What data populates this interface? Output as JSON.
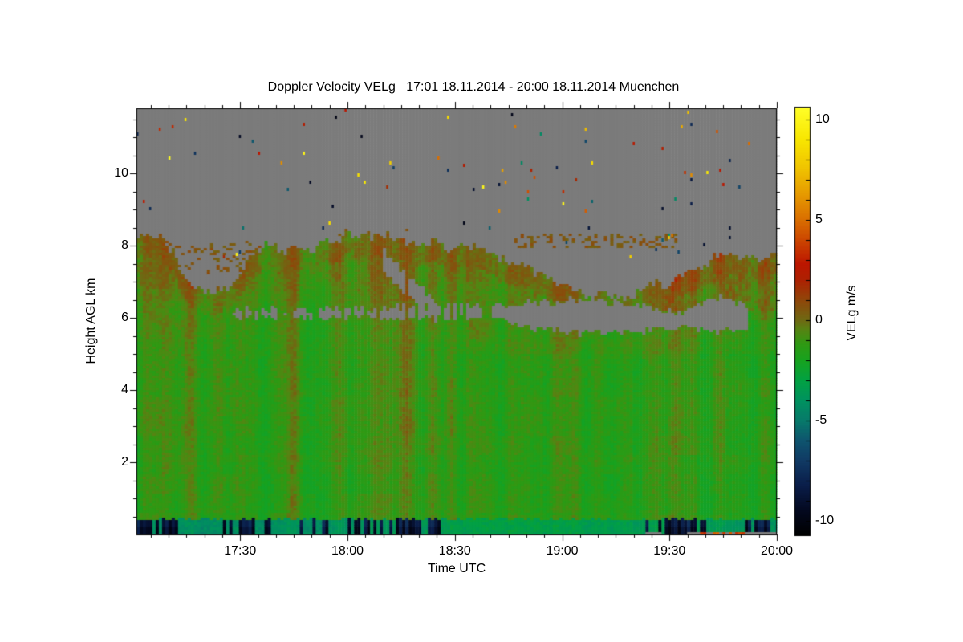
{
  "chart_data": {
    "type": "heatmap",
    "title": "Doppler Velocity VELg   17:01 18.11.2014 - 20:00 18.11.2014 Muenchen",
    "location": "Muenchen",
    "time_span": "17:01 18.11.2014 - 20:00 18.11.2014",
    "x_axis": {
      "label": "Time UTC",
      "start": "17:01",
      "end": "20:00",
      "major_ticks": [
        "17:30",
        "18:00",
        "18:30",
        "19:00",
        "19:30",
        "20:00"
      ],
      "minor_step_minutes": 5
    },
    "y_axis": {
      "label": "Height AGL km",
      "range": [
        0,
        11.8
      ],
      "major_ticks": [
        2,
        4,
        6,
        8,
        10
      ],
      "minor_step": 0.5
    },
    "colorbar": {
      "label": "VELg m/s",
      "tick_values": [
        10,
        5,
        0,
        -5,
        -10
      ],
      "range": [
        -10.75,
        10.65
      ],
      "minor_tick_step": 1
    },
    "colormap": [
      [
        -10.75,
        "#000000"
      ],
      [
        -9.5,
        "#03081f"
      ],
      [
        -8.2,
        "#0a1e4a"
      ],
      [
        -7.0,
        "#103a64"
      ],
      [
        -6.0,
        "#0e546e"
      ],
      [
        -5.0,
        "#077a6a"
      ],
      [
        -4.0,
        "#00925f"
      ],
      [
        -3.0,
        "#02a143"
      ],
      [
        -2.0,
        "#17a21f"
      ],
      [
        -1.2,
        "#2f9913"
      ],
      [
        -0.5,
        "#558513"
      ],
      [
        0.0,
        "#6e6a13"
      ],
      [
        0.6,
        "#82540e"
      ],
      [
        1.2,
        "#964008"
      ],
      [
        2.0,
        "#ad2102"
      ],
      [
        2.8,
        "#bc1600"
      ],
      [
        3.8,
        "#c93e00"
      ],
      [
        5.0,
        "#d96e00"
      ],
      [
        6.3,
        "#e69b00"
      ],
      [
        7.6,
        "#f0c400"
      ],
      [
        9.0,
        "#f8e600"
      ],
      [
        10.65,
        "#ffff2a"
      ]
    ],
    "no_data_color": "#7b7b7b",
    "field": {
      "description": "Cloud radar Doppler velocity: continuous layer from ground to ~8 km, cloud top varying 6.5-8.4 km, gray = no signal, boundary-layer band of strong negative velocity below ~0.45 km",
      "cloud_top_km": [
        [
          "17:01",
          8.25
        ],
        [
          "17:08",
          8.15
        ],
        [
          "17:12",
          7.7
        ],
        [
          "17:15",
          6.95
        ],
        [
          "17:20",
          6.7
        ],
        [
          "17:26",
          6.75
        ],
        [
          "17:31",
          7.35
        ],
        [
          "17:36",
          7.9
        ],
        [
          "17:44",
          7.9
        ],
        [
          "17:52",
          8.05
        ],
        [
          "18:00",
          8.2
        ],
        [
          "18:08",
          8.3
        ],
        [
          "18:16",
          8.2
        ],
        [
          "18:22",
          8.1
        ],
        [
          "18:28",
          7.9
        ],
        [
          "18:33",
          8.05
        ],
        [
          "18:40",
          7.7
        ],
        [
          "18:48",
          7.4
        ],
        [
          "18:56",
          7.1
        ],
        [
          "19:04",
          6.75
        ],
        [
          "19:12",
          6.55
        ],
        [
          "19:20",
          6.7
        ],
        [
          "19:28",
          6.95
        ],
        [
          "19:36",
          7.3
        ],
        [
          "19:43",
          7.7
        ],
        [
          "19:49",
          7.75
        ],
        [
          "19:54",
          7.55
        ],
        [
          "20:00",
          7.85
        ]
      ],
      "gaps": [
        {
          "t0": "17:28",
          "t1": "18:38",
          "dash": 0.72,
          "base": [
            [
              "17:28",
              6.0
            ],
            [
              "18:00",
              6.0
            ],
            [
              "18:38",
              5.95
            ]
          ],
          "top": [
            [
              "17:28",
              6.2
            ],
            [
              "18:00",
              6.25
            ],
            [
              "18:38",
              6.35
            ]
          ]
        },
        {
          "t0": "18:10",
          "t1": "18:25",
          "dash": 0.85,
          "base": [
            [
              "18:10",
              7.3
            ],
            [
              "18:17",
              6.6
            ],
            [
              "18:25",
              6.1
            ]
          ],
          "top": [
            [
              "18:10",
              7.9
            ],
            [
              "18:17",
              7.1
            ],
            [
              "18:25",
              6.5
            ]
          ]
        },
        {
          "t0": "18:40",
          "t1": "19:52",
          "dash": 1.0,
          "base": [
            [
              "18:40",
              6.05
            ],
            [
              "18:52",
              5.7
            ],
            [
              "19:06",
              5.55
            ],
            [
              "19:20",
              5.6
            ],
            [
              "19:34",
              5.75
            ],
            [
              "19:44",
              5.6
            ],
            [
              "19:52",
              5.7
            ]
          ],
          "top": [
            [
              "18:40",
              6.35
            ],
            [
              "18:52",
              6.4
            ],
            [
              "19:06",
              6.5
            ],
            [
              "19:20",
              6.35
            ],
            [
              "19:34",
              6.15
            ],
            [
              "19:44",
              6.6
            ],
            [
              "19:52",
              6.3
            ]
          ]
        }
      ],
      "above_cloud_blobs": [
        {
          "t0": "17:04",
          "t1": "17:36",
          "h0": 7.2,
          "h1": 8.15,
          "density": 0.16
        },
        {
          "t0": "18:47",
          "t1": "19:33",
          "h0": 7.95,
          "h1": 8.35,
          "density": 0.3
        },
        {
          "t0": "17:50",
          "t1": "18:20",
          "h0": 8.3,
          "h1": 8.5,
          "density": 0.05
        }
      ],
      "bottom_band": {
        "top_km": 0.42,
        "base_value_keyframes": [
          [
            "17:01",
            -4.2
          ],
          [
            "18:00",
            -3.9
          ],
          [
            "18:42",
            -3.0
          ],
          [
            "19:20",
            -3.3
          ],
          [
            "20:00",
            -3.8
          ]
        ],
        "streak_value": -7.4,
        "streak_clusters": [
          [
            "17:01",
            "17:13",
            0.9
          ],
          [
            "17:25",
            "17:39",
            0.5
          ],
          [
            "17:47",
            "17:55",
            0.55
          ],
          [
            "18:00",
            "18:26",
            0.7
          ],
          [
            "19:23",
            "19:40",
            0.85
          ],
          [
            "19:49",
            "19:58",
            0.8
          ]
        ]
      },
      "ground_strip": {
        "height_km": 0.07,
        "gray_segments": [
          [
            "19:23",
            "19:28"
          ],
          [
            "19:35",
            "20:00"
          ]
        ],
        "red_segment": [
          "19:37",
          "19:52"
        ],
        "red_value": 3.0
      },
      "speckles": {
        "count": 90
      },
      "mid_base_value": -0.95
    }
  }
}
